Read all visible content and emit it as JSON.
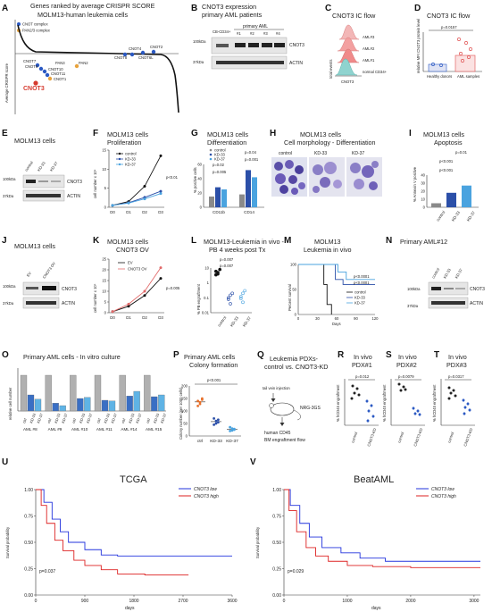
{
  "panels": {
    "A": {
      "letter": "A",
      "title": "Genes ranked by average CRISPR SCORE",
      "subtitle": "MOLM13-human leukemia cells",
      "legend": [
        "CNOT complex",
        "PAN2/3 complex"
      ],
      "ylabel": "Average CRISPR score",
      "gene_labels": [
        "CNOT7",
        "CNOT6",
        "CNOT10",
        "CNOT11",
        "CNOT3",
        "PAN3",
        "PAN2",
        "CNOT1",
        "CNOT8",
        "CNOT4",
        "CNOT6L",
        "CNOT2"
      ],
      "highlight": "CNOT3",
      "colors": {
        "cnot": "#2b59c3",
        "pan": "#e8a33d",
        "highlight": "#d63b2f"
      }
    },
    "B": {
      "letter": "B",
      "title": "CNOT3 expression",
      "subtitle": "primary AML patients",
      "group_label": "primary AML",
      "lanes": [
        "CB-CD34+",
        "#1",
        "#2",
        "#3",
        "#4"
      ],
      "bands": [
        "CNOT3",
        "ACTIN"
      ],
      "markers": [
        "100kDa",
        "37kDa"
      ]
    },
    "C": {
      "letter": "C",
      "title": "CNOT3 IC flow",
      "samples": [
        "AML#3",
        "AML#2",
        "AML#1",
        "normal CD34+"
      ],
      "ylabel": "total events",
      "xlabel": "CNOT3"
    },
    "D": {
      "letter": "D",
      "title": "CNOT3 IC flow",
      "pvalue": "p=0.0157",
      "ylabel": "relative MFI CNOT3 protein level",
      "categories": [
        "Healthy donors",
        "AML samples"
      ]
    },
    "E": {
      "letter": "E",
      "title": "MOLM13 cells",
      "lanes": [
        "control",
        "KD-33",
        "KD-37"
      ],
      "bands": [
        "CNOT3",
        "ACTIN"
      ],
      "markers": [
        "100kDa",
        "37kDa"
      ]
    },
    "F": {
      "letter": "F",
      "title": "MOLM13 cells",
      "subtitle": "Proliferation",
      "ylabel": "cell number x 10⁵",
      "pvalue": "p<0.01"
    },
    "G": {
      "letter": "G",
      "title": "MOLM13 cells",
      "subtitle": "Differentiation",
      "ylabel": "% positive cells",
      "groups": [
        "CD11b",
        "CD14"
      ],
      "pvalues": [
        "p=0.02",
        "p=0.005",
        "p=0.04",
        "p=0.001"
      ]
    },
    "H": {
      "letter": "H",
      "title": "MOLM13 cells",
      "subtitle": "Cell morphology - Differentiation",
      "images": [
        "control",
        "KD-33",
        "KD-37"
      ]
    },
    "I": {
      "letter": "I",
      "title": "MOLM13 cells",
      "subtitle": "Apoptosis",
      "ylabel": "% Annexin V positive",
      "pvalues": [
        "p=0.01",
        "p<0.001",
        "p<0.001"
      ],
      "categories": [
        "control",
        "KD-33",
        "KD-37"
      ]
    },
    "J": {
      "letter": "J",
      "title": "MOLM13 cells",
      "lanes": [
        "EV",
        "CNOT3 OV"
      ],
      "bands": [
        "CNOT3",
        "ACTIN"
      ],
      "markers": [
        "100kDa",
        "37kDa"
      ]
    },
    "K": {
      "letter": "K",
      "title": "MOLM13 cells",
      "subtitle": "CNOT3 OV",
      "ylabel": "cell number x 10⁵",
      "pvalue": "p=0.005",
      "legend": [
        "EV",
        "CNOT3 OV"
      ]
    },
    "L": {
      "letter": "L",
      "title": "MOLM13-Leukemia in vivo -",
      "subtitle": "PB 4 weeks post Tx",
      "pvalues": [
        "p=0.007",
        "p=0.007"
      ],
      "ylabel": "% PB engraftment",
      "categories": [
        "control",
        "KD-33",
        "KD-37"
      ]
    },
    "M": {
      "letter": "M",
      "title": "MOLM13",
      "subtitle": "Leukemia in vivo",
      "ylabel": "Percent survival",
      "xlabel": "Days",
      "pvalues": [
        "p<0.0001",
        "p<0.0001"
      ],
      "legend": [
        "control",
        "KD-33",
        "KD-37"
      ]
    },
    "N": {
      "letter": "N",
      "title": "Primary AML#12",
      "lanes": [
        "control",
        "KD-33",
        "KD-37"
      ],
      "bands": [
        "CNOT3",
        "ACTIN"
      ],
      "markers": [
        "100kDa",
        "37kDa"
      ]
    },
    "O": {
      "letter": "O",
      "title": "Primary AML cells - In vitro culture",
      "ylabel": "relative cell number",
      "samples": [
        "AML #8",
        "AML #9",
        "AML #10",
        "AML #11",
        "AML #14",
        "AML #15"
      ],
      "bar_labels": [
        "ctrl",
        "KD-33",
        "KD-37"
      ]
    },
    "P": {
      "letter": "P",
      "title": "Primary AML cells",
      "subtitle": "Colony formation",
      "pvalue": "p<0.001",
      "ylabel": "Colony number (per 1000 cells)",
      "categories": [
        "ctrl",
        "KD-33",
        "KD-37"
      ]
    },
    "Q": {
      "letter": "Q",
      "title": "Leukemia PDXs-",
      "subtitle": "control vs. CNOT3-KD",
      "injection": "tail vein injection",
      "mouse": "NRG-3GS",
      "readout1": "human CD45",
      "readout2": "BM engraftment flow"
    },
    "R": {
      "letter": "R",
      "title": "In vivo",
      "subtitle": "PDX#1",
      "pvalue": "p=0.012",
      "ylabel": "% hCD45 engraftment",
      "categories": [
        "control",
        "CNOT3-KD"
      ]
    },
    "S": {
      "letter": "S",
      "title": "In vivo",
      "subtitle": "PDX#2",
      "pvalue": "p=0.0079",
      "ylabel": "% hCD45 engraftment",
      "categories": [
        "control",
        "CNOT3-KD"
      ]
    },
    "T": {
      "letter": "T",
      "title": "In vivo",
      "subtitle": "PDX#3",
      "pvalue": "p=0.0317",
      "ylabel": "% hCD45 engraftment",
      "categories": [
        "control",
        "CNOT3-KD"
      ]
    },
    "U": {
      "letter": "U",
      "title": "TCGA",
      "legend": [
        "CNOT3 low",
        "CNOT3 high"
      ],
      "pvalue": "p=0.037",
      "ylabel": "Survival probability",
      "xlabel": "days"
    },
    "V": {
      "letter": "V",
      "title": "BeatAML",
      "legend": [
        "CNOT3 low",
        "CNOT3 high"
      ],
      "pvalue": "p=0.029",
      "ylabel": "Survival probability",
      "xlabel": "days"
    }
  },
  "chart_data": [
    {
      "type": "line",
      "panel": "F",
      "x": [
        "D0",
        "D1",
        "D2",
        "D3"
      ],
      "ylim": [
        0,
        15
      ],
      "yticks": [
        0,
        5,
        10,
        15
      ],
      "series": [
        {
          "name": "control",
          "color": "#111111",
          "values": [
            0.5,
            1.5,
            5.5,
            13.5
          ]
        },
        {
          "name": "KD-33",
          "color": "#2b4fa8",
          "values": [
            0.5,
            1.2,
            2.6,
            4.2
          ]
        },
        {
          "name": "KD-37",
          "color": "#4aa3df",
          "values": [
            0.5,
            1.1,
            2.2,
            3.6
          ]
        }
      ]
    },
    {
      "type": "bar",
      "panel": "G",
      "categories": [
        "CD11b",
        "CD14"
      ],
      "ylim": [
        0,
        60
      ],
      "yticks": [
        0,
        20,
        40,
        60
      ],
      "series": [
        {
          "name": "control",
          "color": "#8a8a8a",
          "values": [
            15,
            18
          ]
        },
        {
          "name": "KD-33",
          "color": "#2b4fa8",
          "values": [
            28,
            52
          ]
        },
        {
          "name": "KD-37",
          "color": "#4aa3df",
          "values": [
            25,
            42
          ]
        }
      ]
    },
    {
      "type": "bar",
      "panel": "I",
      "categories": [
        "control",
        "KD-33",
        "KD-37"
      ],
      "ylim": [
        0,
        40
      ],
      "yticks": [
        0,
        10,
        20,
        30,
        40
      ],
      "values": [
        5,
        18,
        27
      ],
      "colors": [
        "#8a8a8a",
        "#2b4fa8",
        "#4aa3df"
      ]
    },
    {
      "type": "line",
      "panel": "K",
      "x": [
        "D0",
        "D1",
        "D2",
        "D3"
      ],
      "ylim": [
        0,
        25
      ],
      "yticks": [
        0,
        5,
        10,
        15,
        20,
        25
      ],
      "series": [
        {
          "name": "EV",
          "color": "#111111",
          "values": [
            0.5,
            3,
            8,
            16
          ]
        },
        {
          "name": "CNOT3 OV",
          "color": "#e26a6a",
          "values": [
            0.5,
            4,
            10,
            21
          ]
        }
      ]
    },
    {
      "type": "scatter",
      "panel": "L",
      "categories": [
        "control",
        "KD-33",
        "KD-37"
      ],
      "yticks": [
        "0.01",
        "0.1",
        "1",
        "10"
      ],
      "points": [
        [
          6,
          4,
          8,
          3.5,
          5
        ],
        [
          0.1,
          0.04,
          0.2,
          0.08,
          0.15
        ],
        [
          0.12,
          0.05,
          0.3,
          0.09,
          0.2
        ]
      ]
    },
    {
      "type": "line",
      "panel": "M",
      "xlim": [
        0,
        120
      ],
      "xticks": [
        0,
        30,
        60,
        90,
        120
      ],
      "ylim": [
        0,
        100
      ],
      "yticks": [
        0,
        50,
        100
      ],
      "series": [
        {
          "name": "control",
          "color": "#111111",
          "values": [
            [
              0,
              100
            ],
            [
              35,
              100
            ],
            [
              40,
              60
            ],
            [
              45,
              20
            ],
            [
              52,
              0
            ]
          ]
        },
        {
          "name": "KD-33",
          "color": "#2b4fa8",
          "values": [
            [
              0,
              100
            ],
            [
              50,
              100
            ],
            [
              58,
              70
            ],
            [
              70,
              60
            ],
            [
              120,
              60
            ]
          ]
        },
        {
          "name": "KD-37",
          "color": "#4aa3df",
          "values": [
            [
              0,
              100
            ],
            [
              55,
              100
            ],
            [
              62,
              85
            ],
            [
              75,
              70
            ],
            [
              120,
              70
            ]
          ]
        }
      ]
    },
    {
      "type": "bar",
      "panel": "O",
      "categories": [
        "AML #8",
        "AML #9",
        "AML #10",
        "AML #11",
        "AML #14",
        "AML #15"
      ],
      "ylim": [
        0,
        1.2
      ],
      "series": [
        {
          "name": "ctrl",
          "color": "#b0b0b0",
          "values": [
            1,
            1,
            1,
            1,
            1,
            1
          ]
        },
        {
          "name": "KD-33",
          "color": "#3a6fc4",
          "values": [
            0.45,
            0.22,
            0.35,
            0.3,
            0.42,
            0.4
          ]
        },
        {
          "name": "KD-37",
          "color": "#5fb3e5",
          "values": [
            0.33,
            0.15,
            0.38,
            0.28,
            0.55,
            0.45
          ]
        }
      ]
    },
    {
      "type": "scatter",
      "panel": "P",
      "categories": [
        "ctrl",
        "KD-33",
        "KD-37"
      ],
      "ylim": [
        0,
        200
      ],
      "yticks": [
        0,
        50,
        100,
        150,
        200
      ],
      "points": [
        [
          120,
          135,
          145,
          140,
          128,
          150
        ],
        [
          45,
          60,
          55,
          70,
          50,
          65
        ],
        [
          20,
          30,
          25,
          35,
          22,
          28
        ]
      ]
    },
    {
      "type": "line",
      "panel": "U",
      "xlim": [
        0,
        3600
      ],
      "xticks": [
        0,
        900,
        1800,
        2700,
        3600
      ],
      "ylim": [
        0,
        1
      ],
      "yticks": [
        "0.00",
        "0.25",
        "0.50",
        "0.75",
        "1.00"
      ],
      "series": [
        {
          "name": "CNOT3 low",
          "color": "#2233dd",
          "values": [
            [
              0,
              1
            ],
            [
              150,
              0.88
            ],
            [
              300,
              0.72
            ],
            [
              450,
              0.6
            ],
            [
              600,
              0.5
            ],
            [
              900,
              0.43
            ],
            [
              1200,
              0.38
            ],
            [
              1500,
              0.37
            ],
            [
              1800,
              0.37
            ],
            [
              2700,
              0.37
            ],
            [
              3600,
              0.37
            ]
          ]
        },
        {
          "name": "CNOT3 high",
          "color": "#dd2222",
          "values": [
            [
              0,
              1
            ],
            [
              100,
              0.85
            ],
            [
              200,
              0.68
            ],
            [
              350,
              0.52
            ],
            [
              500,
              0.42
            ],
            [
              700,
              0.33
            ],
            [
              900,
              0.28
            ],
            [
              1200,
              0.24
            ],
            [
              1500,
              0.2
            ],
            [
              2000,
              0.19
            ],
            [
              2800,
              0.19
            ]
          ]
        }
      ]
    },
    {
      "type": "line",
      "panel": "V",
      "xlim": [
        0,
        3100
      ],
      "xticks": [
        0,
        1000,
        2000,
        3000
      ],
      "ylim": [
        0,
        1
      ],
      "yticks": [
        "0.00",
        "0.25",
        "0.50",
        "0.75",
        "1.00"
      ],
      "series": [
        {
          "name": "CNOT3 low",
          "color": "#2233dd",
          "values": [
            [
              0,
              1
            ],
            [
              100,
              0.85
            ],
            [
              250,
              0.68
            ],
            [
              400,
              0.55
            ],
            [
              600,
              0.45
            ],
            [
              900,
              0.4
            ],
            [
              1200,
              0.35
            ],
            [
              1600,
              0.32
            ],
            [
              2000,
              0.32
            ],
            [
              2500,
              0.32
            ],
            [
              3100,
              0.32
            ]
          ]
        },
        {
          "name": "CNOT3 high",
          "color": "#dd2222",
          "values": [
            [
              0,
              1
            ],
            [
              80,
              0.8
            ],
            [
              200,
              0.6
            ],
            [
              350,
              0.45
            ],
            [
              500,
              0.37
            ],
            [
              700,
              0.32
            ],
            [
              1000,
              0.28
            ],
            [
              1400,
              0.27
            ],
            [
              2000,
              0.26
            ],
            [
              2600,
              0.26
            ],
            [
              3100,
              0.26
            ]
          ]
        }
      ]
    }
  ]
}
